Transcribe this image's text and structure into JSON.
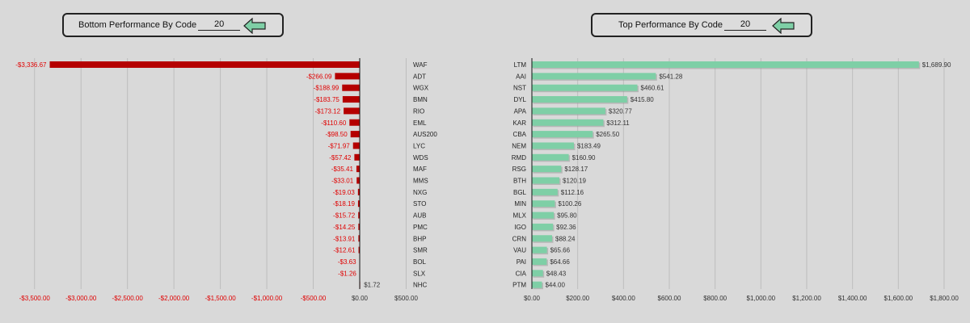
{
  "left_panel": {
    "title": "Bottom Performance By Code",
    "count": "20"
  },
  "right_panel": {
    "title": "Top Performance By Code",
    "count": "20"
  },
  "colors": {
    "negative_bar": "#b50000",
    "negative_text": "#e00000",
    "positive_bar": "#7ecfa6",
    "arrow_fill": "#7ecfa6",
    "grid": "#bdbdbd"
  },
  "chart_data": [
    {
      "type": "bar",
      "orientation": "horizontal",
      "title": "Bottom Performance By Code",
      "categories": [
        "WAF",
        "ADT",
        "WGX",
        "BMN",
        "RIO",
        "EML",
        "AUS200",
        "LYC",
        "WDS",
        "MAF",
        "MMS",
        "NXG",
        "STO",
        "AUB",
        "PMC",
        "BHP",
        "SMR",
        "BOL",
        "SLX",
        "NHC"
      ],
      "values": [
        -3336.67,
        -266.09,
        -188.99,
        -183.75,
        -173.12,
        -110.6,
        -98.5,
        -71.97,
        -57.42,
        -35.41,
        -33.01,
        -19.03,
        -18.19,
        -15.72,
        -14.25,
        -13.91,
        -12.61,
        -3.63,
        -1.26,
        1.72
      ],
      "value_labels": [
        "-$3,336.67",
        "-$266.09",
        "-$188.99",
        "-$183.75",
        "-$173.12",
        "-$110.60",
        "-$98.50",
        "-$71.97",
        "-$57.42",
        "-$35.41",
        "-$33.01",
        "-$19.03",
        "-$18.19",
        "-$15.72",
        "-$14.25",
        "-$13.91",
        "-$12.61",
        "-$3.63",
        "-$1.26",
        "$1.72"
      ],
      "ticks": [
        -3500,
        -3000,
        -2500,
        -2000,
        -1500,
        -1000,
        -500,
        0,
        500
      ],
      "tick_labels": [
        "-$3,500.00",
        "-$3,000.00",
        "-$2,500.00",
        "-$2,000.00",
        "-$1,500.00",
        "-$1,000.00",
        "-$500.00",
        "$0.00",
        "$500.00"
      ],
      "grid": true
    },
    {
      "type": "bar",
      "orientation": "horizontal",
      "title": "Top Performance By Code",
      "categories": [
        "LTM",
        "AAI",
        "NST",
        "DYL",
        "APA",
        "KAR",
        "CBA",
        "NEM",
        "RMD",
        "RSG",
        "BTH",
        "BGL",
        "MIN",
        "MLX",
        "IGO",
        "CRN",
        "VAU",
        "PAI",
        "CIA",
        "PTM"
      ],
      "values": [
        1689.9,
        541.28,
        460.61,
        415.8,
        320.77,
        312.11,
        265.5,
        183.49,
        160.9,
        128.17,
        120.19,
        112.16,
        100.26,
        95.8,
        92.36,
        88.24,
        65.66,
        64.66,
        48.43,
        44.0
      ],
      "value_labels": [
        "$1,689.90",
        "$541.28",
        "$460.61",
        "$415.80",
        "$320.77",
        "$312.11",
        "$265.50",
        "$183.49",
        "$160.90",
        "$128.17",
        "$120.19",
        "$112.16",
        "$100.26",
        "$95.80",
        "$92.36",
        "$88.24",
        "$65.66",
        "$64.66",
        "$48.43",
        "$44.00"
      ],
      "ticks": [
        0,
        200,
        400,
        600,
        800,
        1000,
        1200,
        1400,
        1600,
        1800
      ],
      "tick_labels": [
        "$0.00",
        "$200.00",
        "$400.00",
        "$600.00",
        "$800.00",
        "$1,000.00",
        "$1,200.00",
        "$1,400.00",
        "$1,600.00",
        "$1,800.00"
      ],
      "grid": true
    }
  ]
}
